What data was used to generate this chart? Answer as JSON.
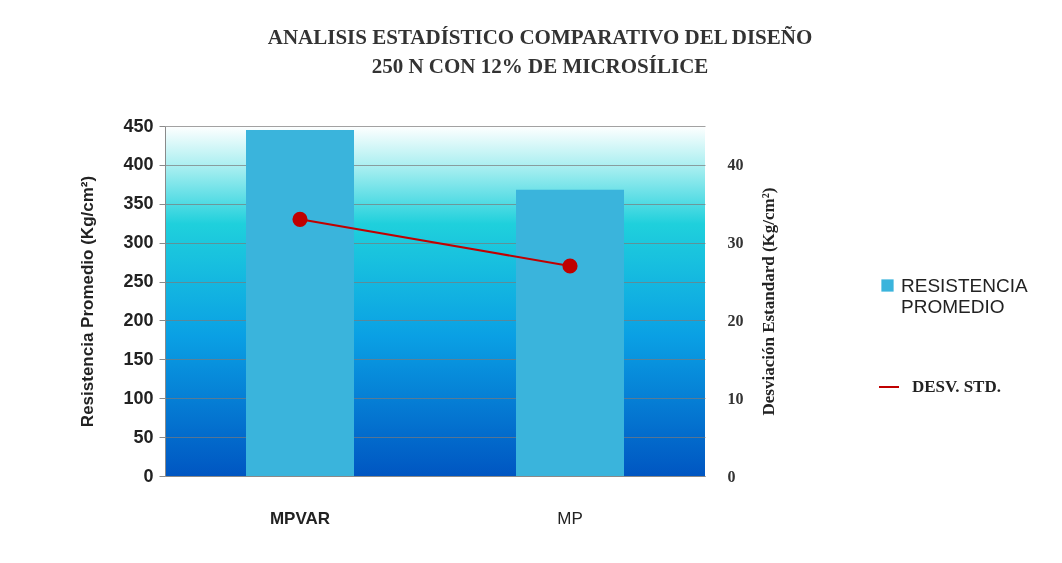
{
  "chart_data": {
    "type": "bar",
    "title": "ANALISIS ESTADÍSTICO COMPARATIVO DEL DISEÑO\n250 N CON 12% DE MICROSÍLICE",
    "ylabel": "Resistencia Promedio (Kg/cm²)",
    "y2label": "Desviación Estandard (Kg/cm²)",
    "categories": [
      "MPVAR",
      "MP"
    ],
    "series": [
      {
        "name": "RESISTENCIA PROMEDIO",
        "color": "#3ab4dc",
        "values": [
          445,
          368
        ]
      },
      {
        "name": "DESV. STD.",
        "type": "line",
        "axis": "y2",
        "color": "#c00000",
        "values": [
          33,
          27
        ]
      }
    ],
    "ylim": [
      0,
      450
    ],
    "yticks": [
      0,
      50,
      100,
      150,
      200,
      250,
      300,
      350,
      400,
      450
    ],
    "y2lim": [
      0,
      45
    ],
    "y2ticks": [
      0,
      10,
      20,
      30,
      40
    ],
    "grid": "y",
    "legend": "right",
    "marker": "circle",
    "line_style": "solid"
  }
}
